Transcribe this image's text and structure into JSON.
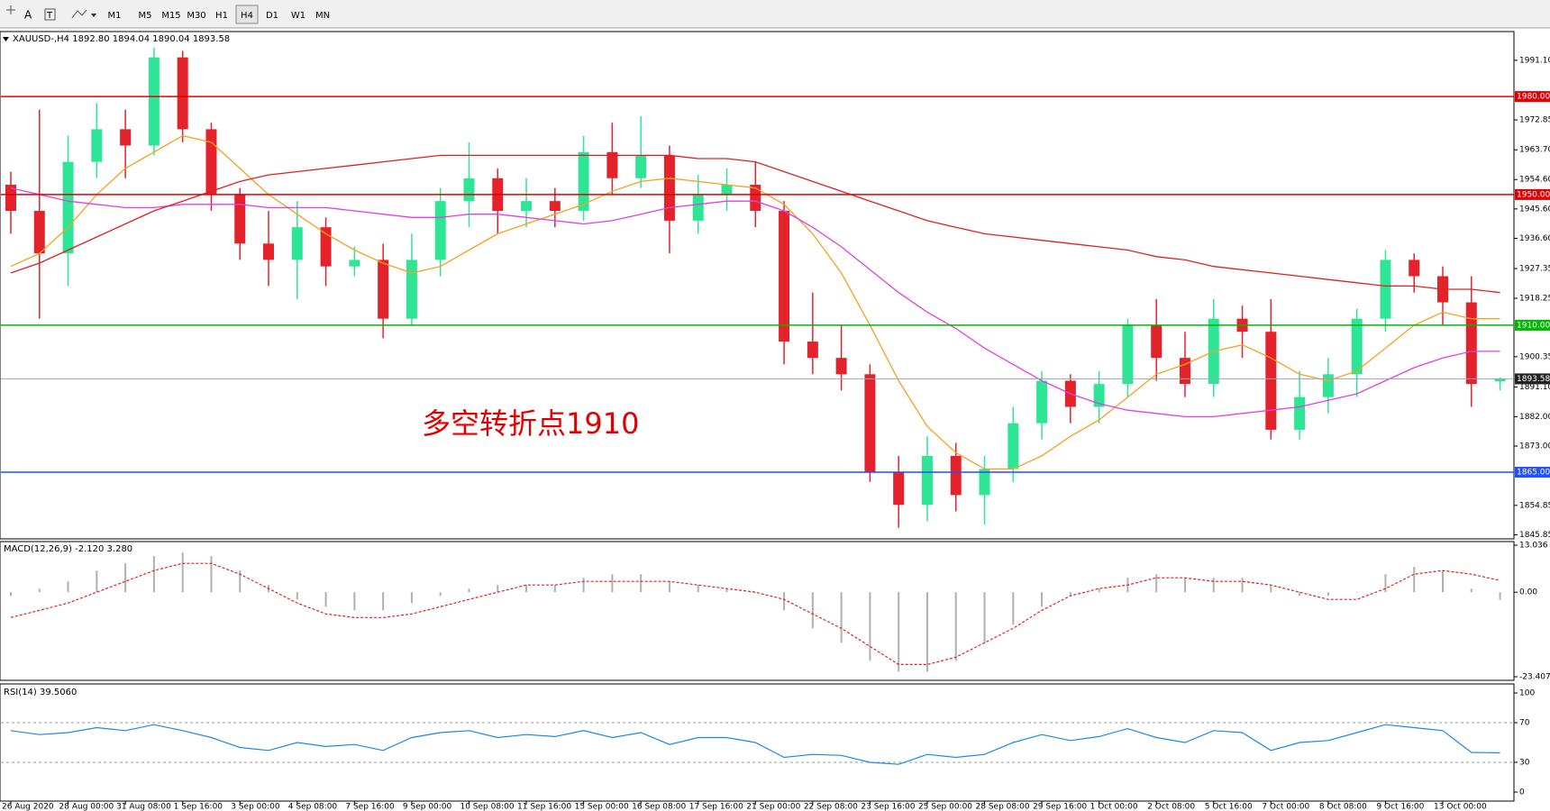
{
  "toolbar": {
    "timeframes": [
      "M1",
      "M5",
      "M15",
      "M30",
      "H1",
      "H4",
      "D1",
      "W1",
      "MN"
    ],
    "active": 5
  },
  "chart_data": [
    {
      "type": "candlestick",
      "title": "XAUUSD-,H4  1892.80 1894.04 1890.04 1893.58",
      "annotation": "多空转折点1910",
      "annotation_color": "#e00000",
      "categories": [
        "26 Aug 2020",
        null,
        "28 Aug 00:00",
        null,
        "31 Aug 08:00",
        null,
        "1 Sep 16:00",
        null,
        "3 Sep 00:00",
        null,
        "4 Sep 08:00",
        null,
        "7 Sep 16:00",
        null,
        "9 Sep 00:00",
        null,
        "10 Sep 08:00",
        null,
        "11 Sep 16:00",
        null,
        "15 Sep 00:00",
        null,
        "16 Sep 08:00",
        null,
        "17 Sep 16:00",
        null,
        "21 Sep 00:00",
        null,
        "22 Sep 08:00",
        null,
        "23 Sep 16:00",
        null,
        "25 Sep 00:00",
        null,
        "28 Sep 08:00",
        null,
        "29 Sep 16:00",
        null,
        "1 Oct 00:00",
        null,
        "2 Oct 08:00",
        null,
        "5 Oct 16:00",
        null,
        "7 Oct 00:00",
        null,
        "8 Oct 08:00",
        null,
        "9 Oct 16:00",
        null,
        "13 Oct 00:00",
        null,
        null
      ],
      "open": [
        1953,
        1945,
        1932,
        1960,
        1970,
        1965,
        1992,
        1970,
        1950,
        1935,
        1930,
        1940,
        1928,
        1930,
        1912,
        1930,
        1948,
        1955,
        1945,
        1948,
        1945,
        1963,
        1955,
        1962,
        1942,
        1950,
        1953,
        1945,
        1905,
        1900,
        1895,
        1865,
        1855,
        1870,
        1858,
        1866,
        1880,
        1893,
        1885,
        1892,
        1910,
        1900,
        1892,
        1912,
        1908,
        1878,
        1888,
        1895,
        1912,
        1930,
        1925,
        1917,
        1892.8
      ],
      "high": [
        1957,
        1976,
        1968,
        1978,
        1976,
        1995,
        1994,
        1972,
        1952,
        1945,
        1948,
        1943,
        1934,
        1935,
        1938,
        1952,
        1966,
        1958,
        1955,
        1952,
        1968,
        1972,
        1974,
        1965,
        1956,
        1958,
        1960,
        1948,
        1920,
        1910,
        1898,
        1870,
        1876,
        1874,
        1870,
        1885,
        1896,
        1895,
        1896,
        1912,
        1918,
        1908,
        1918,
        1916,
        1918,
        1896,
        1900,
        1915,
        1933,
        1932,
        1928,
        1925,
        1894.04
      ],
      "low": [
        1938,
        1912,
        1922,
        1955,
        1955,
        1962,
        1966,
        1945,
        1930,
        1922,
        1918,
        1922,
        1925,
        1906,
        1910,
        1925,
        1940,
        1938,
        1940,
        1940,
        1942,
        1950,
        1952,
        1932,
        1938,
        1945,
        1940,
        1898,
        1895,
        1890,
        1862,
        1848,
        1850,
        1853,
        1849,
        1862,
        1875,
        1880,
        1880,
        1888,
        1893,
        1888,
        1888,
        1900,
        1875,
        1875,
        1883,
        1888,
        1908,
        1920,
        1910,
        1885,
        1890.04
      ],
      "close": [
        1945,
        1932,
        1960,
        1970,
        1965,
        1992,
        1970,
        1950,
        1935,
        1930,
        1940,
        1928,
        1930,
        1912,
        1930,
        1948,
        1955,
        1945,
        1948,
        1945,
        1963,
        1955,
        1962,
        1942,
        1950,
        1953,
        1945,
        1905,
        1900,
        1895,
        1865,
        1855,
        1870,
        1858,
        1866,
        1880,
        1893,
        1885,
        1892,
        1910,
        1900,
        1892,
        1912,
        1908,
        1878,
        1888,
        1895,
        1912,
        1930,
        1925,
        1917,
        1892,
        1893.58
      ],
      "up_color": "#2ee596",
      "down_color": "#e3222b",
      "series": [
        {
          "color": "#f5a020",
          "values": [
            1928,
            1932,
            1940,
            1950,
            1958,
            1963,
            1968,
            1966,
            1958,
            1950,
            1944,
            1938,
            1933,
            1929,
            1926,
            1928,
            1933,
            1938,
            1941,
            1944,
            1947,
            1951,
            1954,
            1955,
            1954,
            1953,
            1952,
            1947,
            1938,
            1926,
            1910,
            1893,
            1879,
            1871,
            1866,
            1866,
            1870,
            1876,
            1881,
            1888,
            1895,
            1898,
            1902,
            1904,
            1900,
            1895,
            1893,
            1896,
            1903,
            1910,
            1914,
            1912,
            1912
          ]
        },
        {
          "color": "#e040e0",
          "values": [
            1952,
            1950,
            1948,
            1947,
            1946,
            1946,
            1947,
            1947,
            1947,
            1946,
            1946,
            1946,
            1945,
            1944,
            1943,
            1943,
            1944,
            1944,
            1943,
            1942,
            1941,
            1942,
            1944,
            1946,
            1947,
            1948,
            1948,
            1945,
            1940,
            1934,
            1927,
            1920,
            1914,
            1909,
            1903,
            1898,
            1893,
            1889,
            1886,
            1884,
            1883,
            1882,
            1882,
            1883,
            1884,
            1885,
            1887,
            1889,
            1893,
            1897,
            1900,
            1902,
            1902
          ]
        },
        {
          "color": "#e02020",
          "values": [
            1926,
            1929,
            1933,
            1937,
            1941,
            1945,
            1948,
            1951,
            1954,
            1956,
            1957,
            1958,
            1959,
            1960,
            1961,
            1962,
            1962,
            1962,
            1962,
            1962,
            1962,
            1962,
            1962,
            1962,
            1961,
            1961,
            1960,
            1957,
            1954,
            1951,
            1948,
            1945,
            1942,
            1940,
            1938,
            1937,
            1936,
            1935,
            1934,
            1933,
            1931,
            1930,
            1928,
            1927,
            1926,
            1925,
            1924,
            1923,
            1922,
            1922,
            1921,
            1921,
            1920
          ]
        }
      ],
      "levels": [
        {
          "value": 1980,
          "label": "1980.00",
          "color": "#e00000"
        },
        {
          "value": 1950,
          "label": "1950.00",
          "color": "#e00000"
        },
        {
          "value": 1910,
          "label": "1910.00",
          "color": "#00b800"
        },
        {
          "value": 1865,
          "label": "1865.00",
          "color": "#1f4fff"
        }
      ],
      "last_price": {
        "value": 1893.58,
        "color": "#9aa4b4"
      },
      "ylim": [
        1844.6,
        1999.9
      ],
      "yticks": [
        {
          "value": 1991.1,
          "label": "1991.10"
        },
        1972.85,
        {
          "value": 1963.7,
          "label": "1963.70"
        },
        {
          "value": 1954.6,
          "label": "1954.60"
        },
        {
          "value": 1945.6,
          "label": "1945.60"
        },
        {
          "value": 1936.6,
          "label": "1936.60"
        },
        1927.35,
        1918.25,
        1900.35,
        {
          "value": 1891.1,
          "label": "1891.10"
        },
        {
          "value": 1882,
          "label": "1882.00"
        },
        {
          "value": 1873,
          "label": "1873.00"
        },
        1854.85,
        1845.85
      ]
    },
    {
      "type": "macd",
      "title": "MACD(12,26,9) -2.120 3.280",
      "color": "#b0b0b0",
      "signal_color": "#e02020",
      "values": [
        -1,
        1,
        3,
        6,
        8,
        10,
        11,
        10,
        6,
        2,
        -2,
        -4,
        -5,
        -5,
        -3,
        -1,
        1,
        2,
        2,
        2,
        4,
        5,
        5,
        3,
        2,
        1,
        0,
        -5,
        -10,
        -14,
        -19,
        -22,
        -22,
        -19,
        -14,
        -9,
        -4,
        -1,
        1,
        4,
        5,
        4,
        4,
        4,
        2,
        -1,
        -1,
        0,
        5,
        7,
        6,
        1,
        -2.12
      ],
      "signal": [
        -7,
        -5,
        -3,
        0,
        3,
        6,
        8,
        8,
        5,
        1,
        -3,
        -6,
        -7,
        -7,
        -6,
        -4,
        -2,
        0,
        2,
        2,
        3,
        3,
        3,
        3,
        2,
        1,
        0,
        -2,
        -6,
        -10,
        -15,
        -20,
        -20,
        -18,
        -14,
        -10,
        -5,
        -1,
        1,
        2,
        4,
        4,
        3,
        3,
        2,
        0,
        -2,
        -2,
        1,
        5,
        6,
        5,
        3.28
      ],
      "ylim": [
        -23.407,
        13.036
      ],
      "yticks": [
        13.036,
        {
          "value": 0,
          "label": "0.00"
        },
        -23.407
      ]
    },
    {
      "type": "rsi",
      "title": "RSI(14) 39.5060",
      "color": "#1e88e5",
      "values": [
        62,
        58,
        60,
        65,
        62,
        68,
        62,
        55,
        45,
        42,
        50,
        46,
        48,
        42,
        55,
        60,
        62,
        55,
        58,
        56,
        62,
        55,
        60,
        48,
        55,
        55,
        50,
        35,
        38,
        37,
        30,
        28,
        38,
        35,
        38,
        50,
        58,
        52,
        56,
        64,
        55,
        50,
        62,
        60,
        42,
        50,
        52,
        60,
        68,
        65,
        62,
        40,
        39.506
      ],
      "levels": [
        70,
        30
      ],
      "ylim": [
        0,
        100
      ],
      "yticks": [
        100,
        70,
        30,
        0
      ]
    }
  ]
}
